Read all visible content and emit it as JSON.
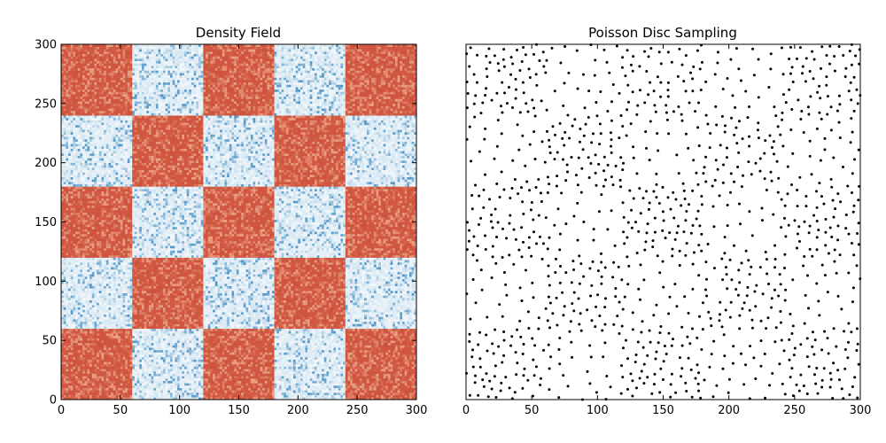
{
  "chart_data": [
    {
      "type": "heatmap",
      "title": "Density Field",
      "xlabel": "",
      "ylabel": "",
      "xlim": [
        0,
        300
      ],
      "ylim": [
        0,
        300
      ],
      "x_ticks": [
        0,
        50,
        100,
        150,
        200,
        250,
        300
      ],
      "y_ticks": [
        0,
        50,
        100,
        150,
        200,
        250,
        300
      ],
      "grid": false,
      "checker_cell_size": 60,
      "checker_rows_from_bottom": [
        [
          "high",
          "low",
          "high",
          "low",
          "high"
        ],
        [
          "low",
          "high",
          "low",
          "high",
          "low"
        ],
        [
          "high",
          "low",
          "high",
          "low",
          "high"
        ],
        [
          "low",
          "high",
          "low",
          "high",
          "low"
        ],
        [
          "high",
          "low",
          "high",
          "low",
          "high"
        ]
      ],
      "colormap": {
        "high": "#d25a43",
        "high_light": "#f2b89a",
        "low": "#d3e6f2",
        "low_dark": "#4f94c4",
        "low_light": "#f4f8fb"
      }
    },
    {
      "type": "scatter",
      "title": "Poisson Disc Sampling",
      "xlabel": "",
      "ylabel": "",
      "xlim": [
        0,
        300
      ],
      "ylim": [
        0,
        300
      ],
      "x_ticks": [
        0,
        50,
        100,
        150,
        200,
        250,
        300
      ],
      "y_ticks": [],
      "grid": false,
      "marker_color": "#000000",
      "points_note_dense_cells": "denser sampling inside high-density checker cells",
      "checker_cell_size": 60
    }
  ]
}
